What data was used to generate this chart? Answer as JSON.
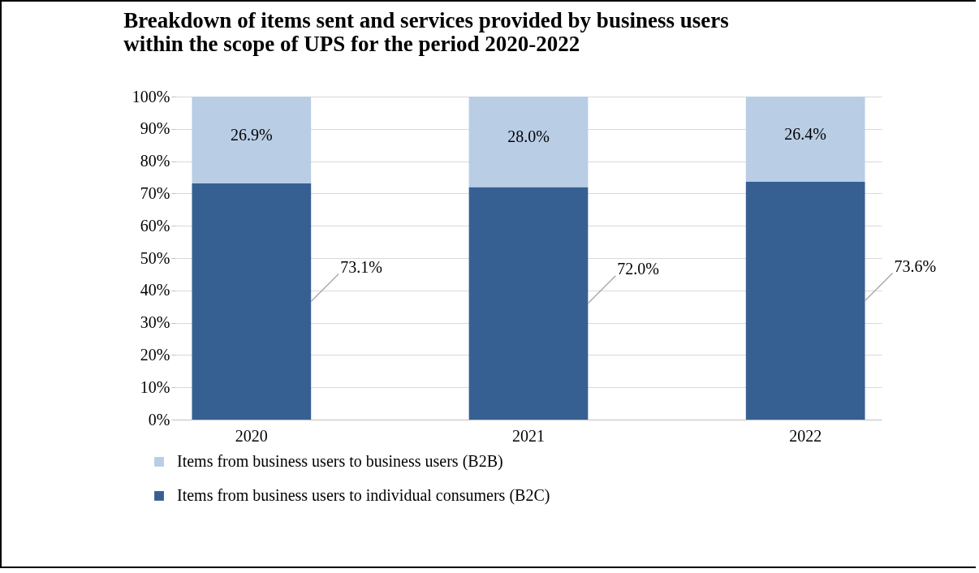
{
  "chart_data": {
    "type": "bar",
    "title": [
      "Breakdown of items sent and services provided by business users",
      "within the scope of UPS for the period 2020-2022"
    ],
    "categories": [
      "2020",
      "2021",
      "2022"
    ],
    "stacked": true,
    "series": [
      {
        "name": "Items from business users to individual consumers (B2C)",
        "color": "#376092",
        "values": [
          73.1,
          72.0,
          73.6
        ],
        "value_labels": [
          "73.1%",
          "72.0%",
          "73.6%"
        ]
      },
      {
        "name": "Items from business users to business users (B2B)",
        "color": "#b9cde5",
        "values": [
          26.9,
          28.0,
          26.4
        ],
        "value_labels": [
          "26.9%",
          "28.0%",
          "26.4%"
        ]
      }
    ],
    "ylim": [
      0,
      100
    ],
    "yticks": [
      {
        "value": 0,
        "label": "0%"
      },
      {
        "value": 10,
        "label": "10%"
      },
      {
        "value": 20,
        "label": "20%"
      },
      {
        "value": 30,
        "label": "30%"
      },
      {
        "value": 40,
        "label": "40%"
      },
      {
        "value": 50,
        "label": "50%"
      },
      {
        "value": 60,
        "label": "60%"
      },
      {
        "value": 70,
        "label": "70%"
      },
      {
        "value": 80,
        "label": "80%"
      },
      {
        "value": 90,
        "label": "90%"
      },
      {
        "value": 100,
        "label": "100%"
      }
    ],
    "grid": "y",
    "legend": "bottom"
  }
}
